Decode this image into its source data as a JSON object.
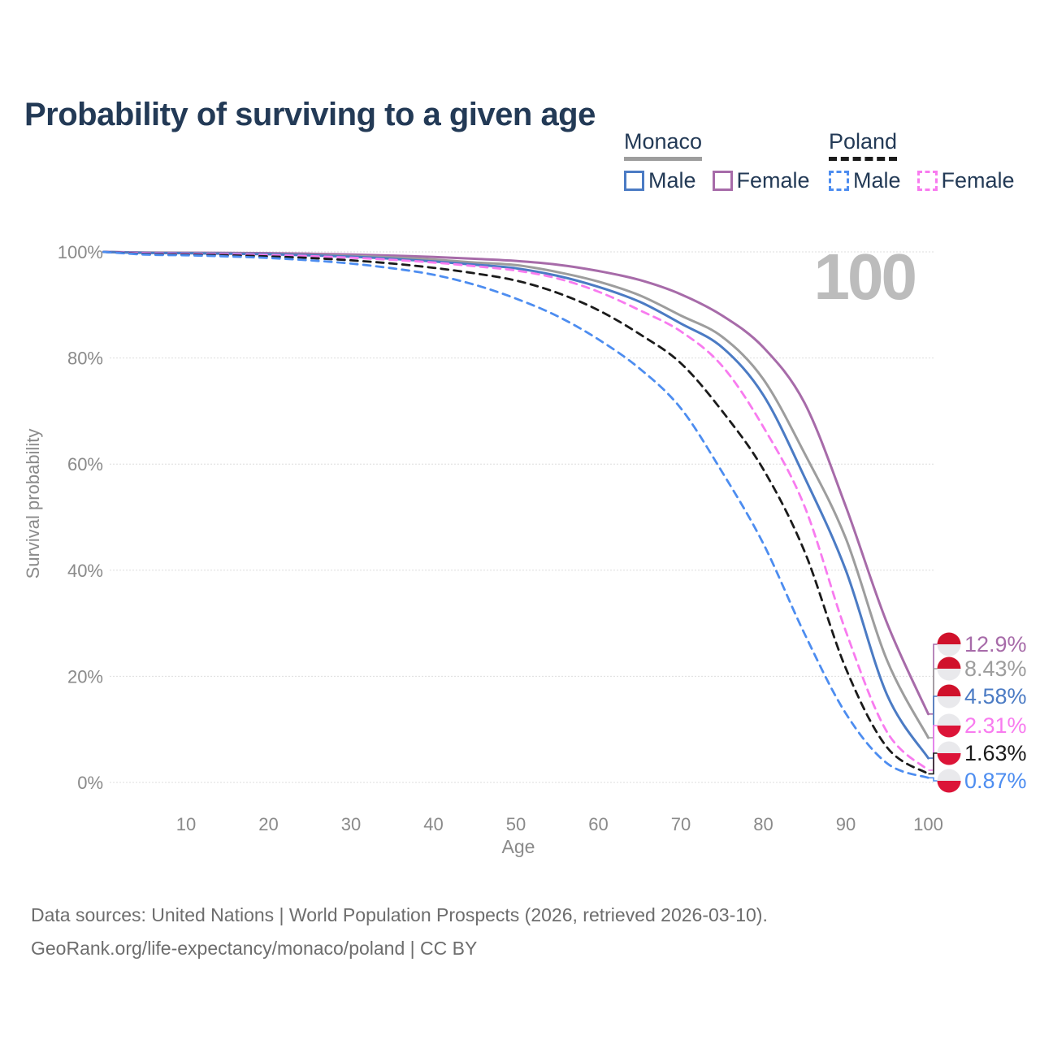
{
  "page": {
    "title": "Probability of surviving to a given age",
    "watermark_age": "100",
    "footer_line1": "Data sources: United Nations | World Population Prospects (2026, retrieved 2026-03-10).",
    "footer_line2": "GeoRank.org/life-expectancy/monaco/poland | CC BY"
  },
  "colors": {
    "title_text": "#233a56",
    "axis_text": "#8a8a8a",
    "gridline": "#dedede",
    "watermark": "#bcbcbc",
    "footer_text": "#6d6d6d",
    "monaco_flag_red": "#d0112b",
    "poland_flag_red": "#dc1438",
    "flag_white": "#e9e9ec"
  },
  "legend": {
    "groups": [
      {
        "label": "Monaco",
        "line_color": "#9d9d9d",
        "line_dashed": false,
        "items": [
          {
            "label": "Male",
            "color": "#4b7bc4",
            "dashed": false
          },
          {
            "label": "Female",
            "color": "#a76ba9",
            "dashed": false
          }
        ]
      },
      {
        "label": "Poland",
        "line_color": "#1b1b1b",
        "line_dashed": true,
        "items": [
          {
            "label": "Male",
            "color": "#4d8df0",
            "dashed": true
          },
          {
            "label": "Female",
            "color": "#f87bef",
            "dashed": true
          }
        ]
      }
    ]
  },
  "chart_data": {
    "type": "line",
    "title": "Probability of surviving to a given age",
    "xlabel": "Age",
    "ylabel": "Survival probability",
    "xlim": [
      0,
      100
    ],
    "ylim": [
      0,
      100
    ],
    "grid": "horizontal-only",
    "legend_position": "top-right",
    "xticks": [
      10,
      20,
      30,
      40,
      50,
      60,
      70,
      80,
      90,
      100
    ],
    "yticks": [
      0,
      20,
      40,
      60,
      80,
      100
    ],
    "ytick_format": "percent",
    "x": [
      0,
      5,
      10,
      15,
      20,
      25,
      30,
      35,
      40,
      45,
      50,
      55,
      60,
      65,
      70,
      75,
      80,
      85,
      90,
      95,
      100
    ],
    "series": [
      {
        "name": "Monaco Female",
        "country": "Monaco",
        "sex": "Female",
        "color": "#a76ba9",
        "dashed": false,
        "flag": "monaco",
        "end_label": "12.9%",
        "values": [
          100,
          99.9,
          99.85,
          99.8,
          99.75,
          99.65,
          99.5,
          99.3,
          99.05,
          98.7,
          98.3,
          97.6,
          96.4,
          94.7,
          92.0,
          88.0,
          82.0,
          71.5,
          52.0,
          30.0,
          12.9
        ]
      },
      {
        "name": "Monaco",
        "country": "Monaco",
        "sex": "Both",
        "color": "#9d9d9d",
        "dashed": false,
        "flag": "monaco",
        "end_label": "8.43%",
        "values": [
          100,
          99.85,
          99.8,
          99.7,
          99.6,
          99.45,
          99.25,
          98.95,
          98.55,
          98.0,
          97.5,
          96.2,
          94.4,
          91.8,
          88.0,
          84.0,
          76.0,
          62.0,
          46.0,
          23.0,
          8.43
        ]
      },
      {
        "name": "Monaco Male",
        "country": "Monaco",
        "sex": "Male",
        "color": "#4b7bc4",
        "dashed": false,
        "flag": "monaco",
        "end_label": "4.58%",
        "values": [
          100,
          99.8,
          99.75,
          99.65,
          99.55,
          99.35,
          99.1,
          98.7,
          98.2,
          97.6,
          96.9,
          95.5,
          93.4,
          90.6,
          86.5,
          82.0,
          73.0,
          57.5,
          40.0,
          16.5,
          4.58
        ]
      },
      {
        "name": "Poland Female",
        "country": "Poland",
        "sex": "Female",
        "color": "#f87bef",
        "dashed": true,
        "flag": "poland",
        "end_label": "2.31%",
        "values": [
          100,
          99.75,
          99.65,
          99.55,
          99.4,
          99.2,
          98.9,
          98.5,
          98.0,
          97.3,
          96.5,
          95.0,
          92.5,
          89.0,
          85.0,
          78.5,
          67.0,
          52.0,
          28.5,
          9.5,
          2.31
        ]
      },
      {
        "name": "Poland",
        "country": "Poland",
        "sex": "Both",
        "color": "#1b1b1b",
        "dashed": true,
        "flag": "poland",
        "end_label": "1.63%",
        "values": [
          100,
          99.6,
          99.5,
          99.35,
          99.15,
          98.85,
          98.4,
          97.8,
          97.0,
          95.95,
          94.6,
          92.3,
          89.0,
          84.5,
          79.0,
          70.0,
          59.0,
          43.5,
          21.5,
          6.6,
          1.63
        ]
      },
      {
        "name": "Poland Male",
        "country": "Poland",
        "sex": "Male",
        "color": "#4d8df0",
        "dashed": true,
        "flag": "poland",
        "end_label": "0.87%",
        "values": [
          100,
          99.5,
          99.35,
          99.15,
          98.85,
          98.4,
          97.8,
          96.9,
          95.7,
          93.8,
          91.2,
          87.9,
          83.5,
          78.0,
          70.5,
          58.5,
          45.0,
          28.0,
          13.0,
          3.6,
          0.87
        ]
      }
    ]
  }
}
